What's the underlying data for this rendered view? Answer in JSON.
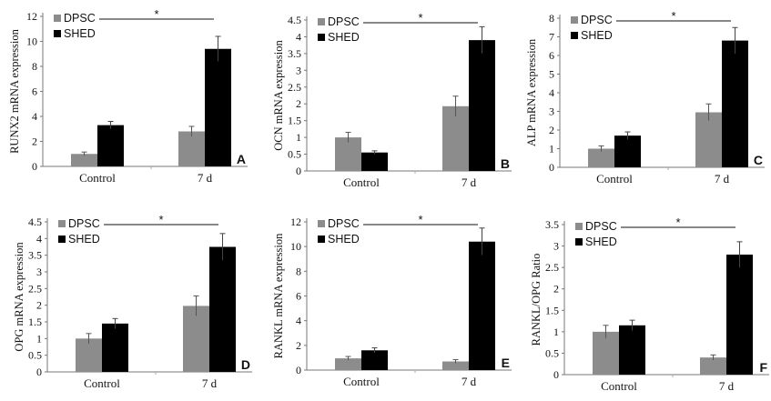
{
  "legend": {
    "series": [
      "DPSC",
      "SHED"
    ]
  },
  "colors": {
    "DPSC": "#8c8c8c",
    "SHED": "#000000"
  },
  "chart_data": [
    {
      "type": "bar",
      "panel": "A",
      "ylabel": "RUNX2 mRNA expression",
      "categories": [
        "Control",
        "7 d"
      ],
      "ylim": [
        0,
        12
      ],
      "yticks": [
        0,
        2,
        4,
        6,
        8,
        10,
        12
      ],
      "significance": "*",
      "series": [
        {
          "name": "DPSC",
          "values": [
            1.0,
            2.8
          ],
          "errors": [
            0.15,
            0.4
          ]
        },
        {
          "name": "SHED",
          "values": [
            3.3,
            9.4
          ],
          "errors": [
            0.3,
            1.0
          ]
        }
      ]
    },
    {
      "type": "bar",
      "panel": "B",
      "ylabel": "OCN mRNA expression",
      "categories": [
        "Control",
        "7 d"
      ],
      "ylim": [
        0,
        4.5
      ],
      "yticks": [
        0,
        0.5,
        1.0,
        1.5,
        2.0,
        2.5,
        3.0,
        3.5,
        4.0,
        4.5
      ],
      "significance": "*",
      "series": [
        {
          "name": "DPSC",
          "values": [
            1.0,
            1.93
          ],
          "errors": [
            0.15,
            0.3
          ]
        },
        {
          "name": "SHED",
          "values": [
            0.55,
            3.9
          ],
          "errors": [
            0.05,
            0.4
          ]
        }
      ]
    },
    {
      "type": "bar",
      "panel": "C",
      "ylabel": "ALP mRNA expression",
      "categories": [
        "Control",
        "7 d"
      ],
      "ylim": [
        0,
        8
      ],
      "yticks": [
        0,
        1,
        2,
        3,
        4,
        5,
        6,
        7,
        8
      ],
      "significance": "*",
      "series": [
        {
          "name": "DPSC",
          "values": [
            1.0,
            2.95
          ],
          "errors": [
            0.15,
            0.45
          ]
        },
        {
          "name": "SHED",
          "values": [
            1.7,
            6.8
          ],
          "errors": [
            0.2,
            0.7
          ]
        }
      ]
    },
    {
      "type": "bar",
      "panel": "D",
      "ylabel": "OPG mRNA expression",
      "categories": [
        "Control",
        "7 d"
      ],
      "ylim": [
        0,
        4.5
      ],
      "yticks": [
        0,
        0.5,
        1.0,
        1.5,
        2.0,
        2.5,
        3.0,
        3.5,
        4.0,
        4.5
      ],
      "significance": "*",
      "series": [
        {
          "name": "DPSC",
          "values": [
            1.0,
            1.98
          ],
          "errors": [
            0.15,
            0.3
          ]
        },
        {
          "name": "SHED",
          "values": [
            1.45,
            3.75
          ],
          "errors": [
            0.15,
            0.4
          ]
        }
      ]
    },
    {
      "type": "bar",
      "panel": "E",
      "ylabel": "RANKL mRNA expression",
      "categories": [
        "Control",
        "7 d"
      ],
      "ylim": [
        0,
        12
      ],
      "yticks": [
        0,
        2,
        4,
        6,
        8,
        10,
        12
      ],
      "significance": "*",
      "series": [
        {
          "name": "DPSC",
          "values": [
            0.95,
            0.7
          ],
          "errors": [
            0.15,
            0.15
          ]
        },
        {
          "name": "SHED",
          "values": [
            1.6,
            10.4
          ],
          "errors": [
            0.2,
            1.1
          ]
        }
      ]
    },
    {
      "type": "bar",
      "panel": "F",
      "ylabel": "RANKL/OPG Ratio",
      "categories": [
        "Control",
        "7 d"
      ],
      "ylim": [
        0,
        3.5
      ],
      "yticks": [
        0,
        0.5,
        1.0,
        1.5,
        2.0,
        2.5,
        3.0,
        3.5
      ],
      "significance": "*",
      "series": [
        {
          "name": "DPSC",
          "values": [
            1.0,
            0.4
          ],
          "errors": [
            0.15,
            0.06
          ]
        },
        {
          "name": "SHED",
          "values": [
            1.15,
            2.8
          ],
          "errors": [
            0.12,
            0.3
          ]
        }
      ]
    }
  ]
}
